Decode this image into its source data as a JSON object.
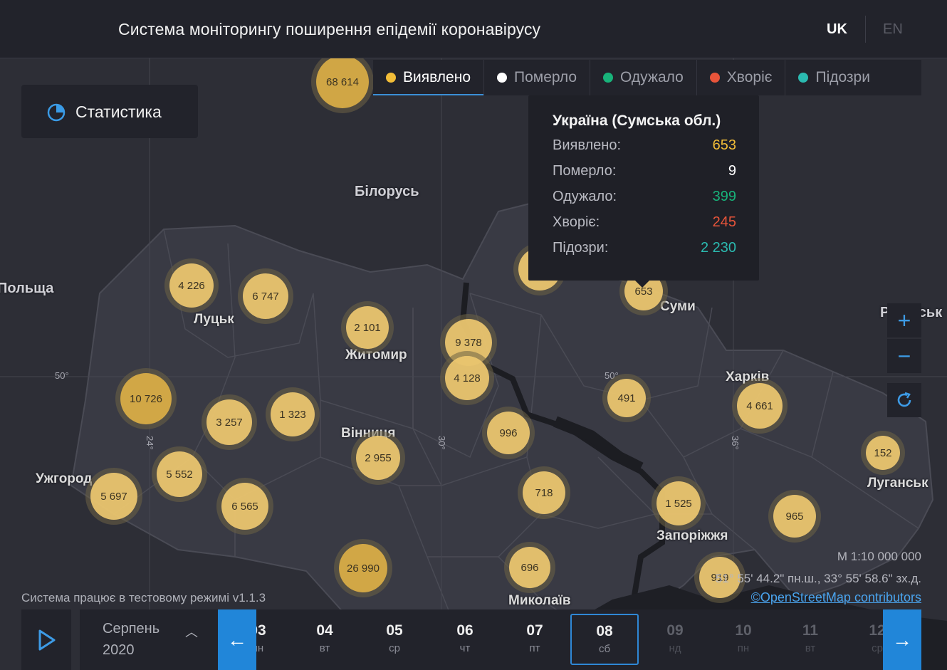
{
  "header": {
    "title": "Система моніторингу поширення епідемії коронавірусу",
    "lang_uk": "UK",
    "lang_en": "EN"
  },
  "stats_button": {
    "label": "Статистика",
    "icon": "pie-chart-icon"
  },
  "tabs": [
    {
      "label": "Виявлено",
      "color": "#f2bd38",
      "active": true
    },
    {
      "label": "Померло",
      "color": "#ffffff"
    },
    {
      "label": "Одужало",
      "color": "#18b37a"
    },
    {
      "label": "Хворіє",
      "color": "#e8543a"
    },
    {
      "label": "Підозри",
      "color": "#2bbab0"
    }
  ],
  "tooltip": {
    "title": "Україна (Сумська обл.)",
    "rows": [
      {
        "label": "Виявлено:",
        "value": "653",
        "color": "#f2bd38"
      },
      {
        "label": "Померло:",
        "value": "9",
        "color": "#ffffff"
      },
      {
        "label": "Одужало:",
        "value": "399",
        "color": "#18b37a"
      },
      {
        "label": "Хворіє:",
        "value": "245",
        "color": "#e8543a"
      },
      {
        "label": "Підозри:",
        "value": "2 230",
        "color": "#2bbab0"
      }
    ]
  },
  "map_labels": {
    "belarus": "Білорусь",
    "poland": "Польща",
    "lutsk": "Луцьк",
    "zhytomyr": "Житомир",
    "sumy": "Суми",
    "kharkiv": "Харків",
    "vinnytsia": "Вінниця",
    "uzhhorod": "Ужгород",
    "luhansk": "Луганськ",
    "zaporizhzhia": "Запоріжжя",
    "mykolaiv": "Миколаїв",
    "russia_partial": "Російськ"
  },
  "coords": {
    "lat50a": "50°",
    "lat50b": "50°",
    "lon24": "24°",
    "lon30": "30°",
    "lon36": "36°"
  },
  "bubbles": [
    "68 614",
    "4 226",
    "6 747",
    "2 101",
    "9 378",
    "4 128",
    "653",
    "491",
    "4 661",
    "10 726",
    "3 257",
    "1 323",
    "996",
    "5 552",
    "2 955",
    "5 697",
    "6 565",
    "718",
    "1 525",
    "152",
    "965",
    "26 990",
    "696",
    "919"
  ],
  "scale": "М 1:10 000 000",
  "cursor_coords": "51° 55' 44.2\" пн.ш., 33° 55' 58.6\" зх.д.",
  "attribution": "©OpenStreetMap contributors",
  "test_mode": "Система працює в тестовому режимі v1.1.3",
  "timeline": {
    "month": "Серпень",
    "year": "2020",
    "days": [
      {
        "n": "03",
        "w": "пн"
      },
      {
        "n": "04",
        "w": "вт"
      },
      {
        "n": "05",
        "w": "ср"
      },
      {
        "n": "06",
        "w": "чт"
      },
      {
        "n": "07",
        "w": "пт"
      },
      {
        "n": "08",
        "w": "сб",
        "selected": true
      },
      {
        "n": "09",
        "w": "нд",
        "future": true
      },
      {
        "n": "10",
        "w": "пн",
        "future": true
      },
      {
        "n": "11",
        "w": "вт",
        "future": true
      },
      {
        "n": "12",
        "w": "ср",
        "future": true
      }
    ]
  }
}
